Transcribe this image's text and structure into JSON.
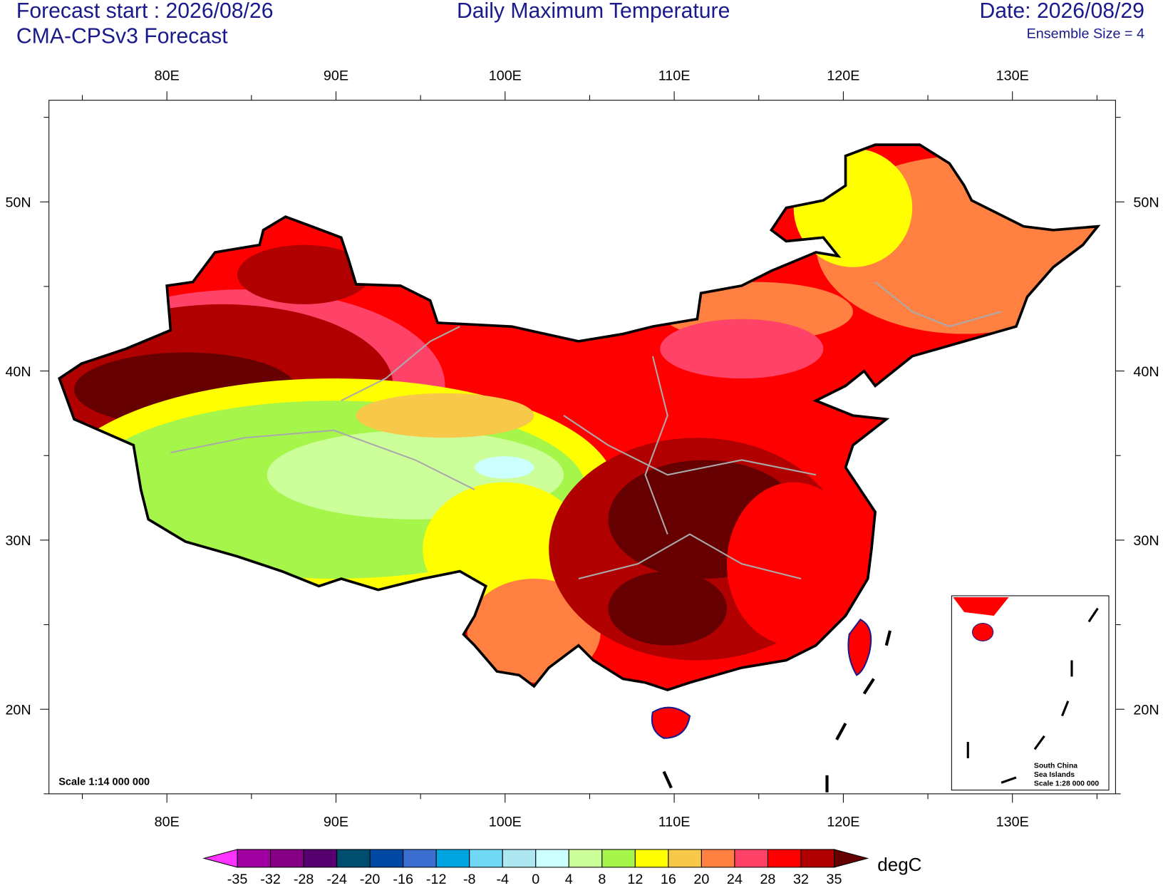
{
  "header": {
    "forecast_start": "Forecast start : 2026/08/26",
    "model": "CMA-CPSv3 Forecast",
    "title": "Daily Maximum Temperature",
    "date": "Date: 2026/08/29",
    "ensemble": "Ensemble Size = 4"
  },
  "map": {
    "lon_labels": [
      "80E",
      "90E",
      "100E",
      "110E",
      "120E",
      "130E"
    ],
    "lat_labels": [
      "50N",
      "40N",
      "30N",
      "20N"
    ],
    "scale": "Scale 1:14 000 000",
    "inset_labels": [
      "South China",
      "Sea Islands",
      "Scale 1:28 000 000"
    ]
  },
  "colorbar": {
    "levels": [
      -35,
      -32,
      -28,
      -24,
      -20,
      -16,
      -12,
      -8,
      -4,
      0,
      4,
      8,
      12,
      16,
      20,
      24,
      28,
      32,
      35
    ],
    "colors": [
      "#ff33ff",
      "#a000a0",
      "#860086",
      "#560070",
      "#004e6e",
      "#0048a4",
      "#3a6fd0",
      "#00a4e0",
      "#70d8f4",
      "#ade8f2",
      "#ccffff",
      "#ccff99",
      "#a6f54a",
      "#ffff00",
      "#f7c84a",
      "#ff8040",
      "#ff4268",
      "#ff0000",
      "#b00000",
      "#660000"
    ],
    "unit": "degC"
  }
}
